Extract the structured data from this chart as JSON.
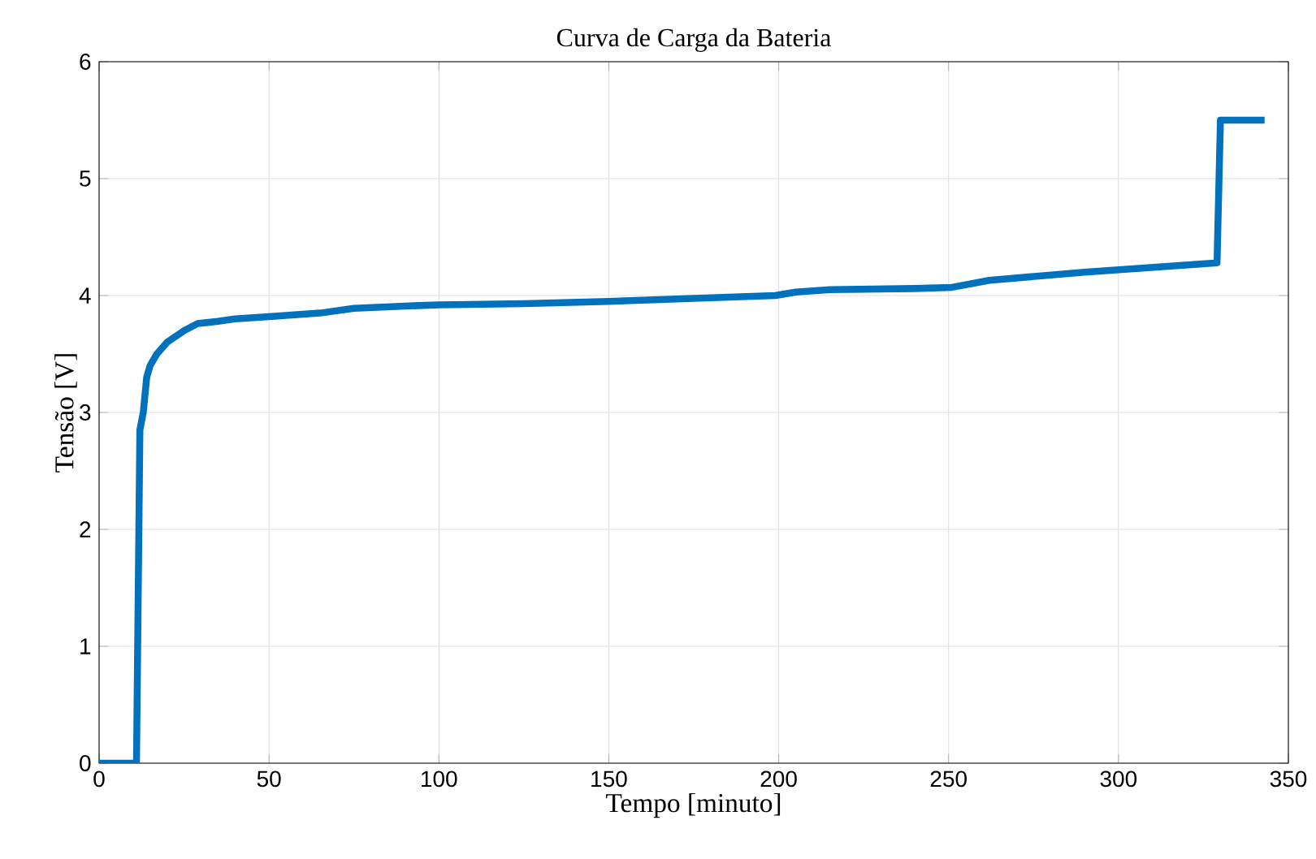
{
  "chart_data": {
    "type": "line",
    "title": "Curva de Carga da Bateria",
    "xlabel": "Tempo [minuto]",
    "ylabel": "Tensão [V]",
    "xlim": [
      0,
      350
    ],
    "ylim": [
      0,
      6
    ],
    "xticks": [
      0,
      50,
      100,
      150,
      200,
      250,
      300,
      350
    ],
    "yticks": [
      0,
      1,
      2,
      3,
      4,
      5,
      6
    ],
    "grid": true,
    "series": [
      {
        "color": "#0072bd",
        "x": [
          0,
          11,
          12,
          13,
          14,
          15,
          17,
          20,
          23,
          25,
          29,
          35,
          40,
          50,
          65,
          75,
          90,
          100,
          125,
          150,
          170,
          199,
          205,
          215,
          240,
          251,
          262,
          290,
          329,
          330,
          343
        ],
        "values": [
          0,
          0,
          2.85,
          3.0,
          3.3,
          3.4,
          3.5,
          3.6,
          3.66,
          3.7,
          3.76,
          3.78,
          3.8,
          3.82,
          3.85,
          3.89,
          3.91,
          3.92,
          3.93,
          3.95,
          3.97,
          4.0,
          4.03,
          4.05,
          4.06,
          4.07,
          4.13,
          4.2,
          4.28,
          5.5,
          5.5
        ]
      }
    ]
  }
}
